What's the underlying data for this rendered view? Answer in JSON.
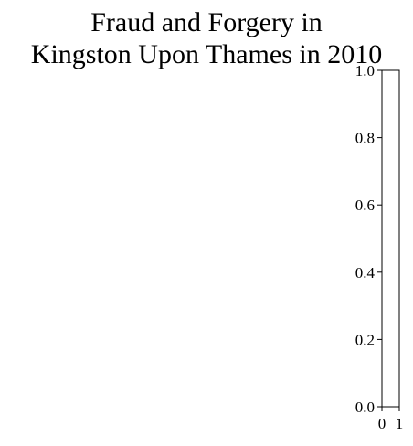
{
  "chart_data": {
    "type": "heatmap",
    "title_lines": [
      "Fraud and Forgery in",
      "Kingston Upon Thames in 2010"
    ],
    "colorbar": {
      "ylim": [
        0.0,
        1.0
      ],
      "yticks": [
        "0.0",
        "0.2",
        "0.4",
        "0.6",
        "0.8",
        "1.0"
      ],
      "xlim": [
        0,
        1
      ],
      "xticks": [
        "0",
        "1"
      ]
    },
    "values": []
  }
}
